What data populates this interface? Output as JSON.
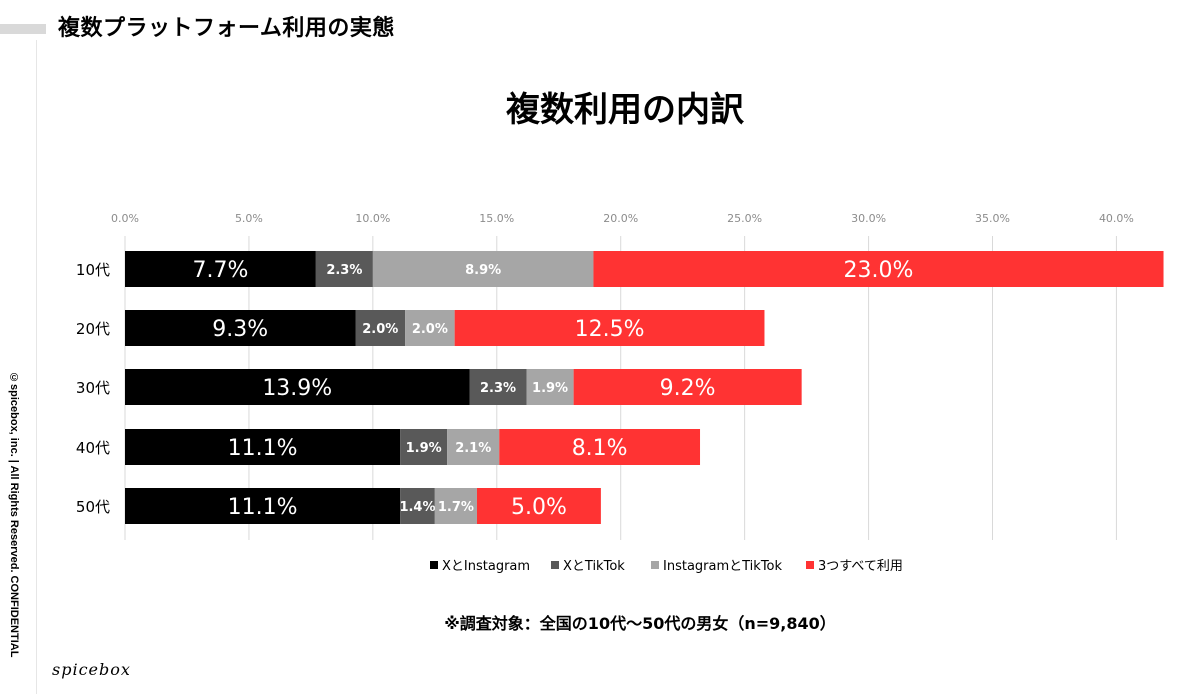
{
  "header": {
    "title": "複数プラットフォーム利用の実態"
  },
  "copyright": "©spicebox, inc. | All Rights Reserved. CONFIDENTIAL",
  "logo": "spicebox",
  "footnote": "※調査対象：全国の10代〜50代の男女（n=9,840）",
  "colors": {
    "x_instagram": "#000000",
    "x_tiktok": "#595959",
    "instagram_tiktok": "#a6a6a6",
    "all_three": "#ff3333"
  },
  "chart_data": {
    "type": "bar",
    "orientation": "horizontal",
    "stacked": true,
    "title": "複数利用の内訳",
    "categories": [
      "10代",
      "20代",
      "30代",
      "40代",
      "50代"
    ],
    "series": [
      {
        "name": "XとInstagram",
        "values": [
          7.7,
          9.3,
          13.9,
          11.1,
          11.1
        ],
        "labels": [
          "7.7%",
          "9.3%",
          "13.9%",
          "11.1%",
          "11.1%"
        ]
      },
      {
        "name": "XとTikTok",
        "values": [
          2.3,
          2.0,
          2.3,
          1.9,
          1.4
        ],
        "labels": [
          "2.3%",
          "2.0%",
          "2.3%",
          "1.9%",
          "1.4%"
        ]
      },
      {
        "name": "InstagramとTikTok",
        "values": [
          8.9,
          2.0,
          1.9,
          2.1,
          1.7
        ],
        "labels": [
          "8.9%",
          "2.0%",
          "1.9%",
          "2.1%",
          "1.7%"
        ]
      },
      {
        "name": "3つすべて利用",
        "values": [
          23.0,
          12.5,
          9.2,
          8.1,
          5.0
        ],
        "labels": [
          "23.0%",
          "12.5%",
          "9.2%",
          "8.1%",
          "5.0%"
        ]
      }
    ],
    "xlim": [
      0,
      42
    ],
    "x_ticks": [
      "0.0%",
      "5.0%",
      "10.0%",
      "15.0%",
      "20.0%",
      "25.0%",
      "30.0%",
      "35.0%",
      "40.0%"
    ],
    "grid": true,
    "legend": "bottom"
  }
}
